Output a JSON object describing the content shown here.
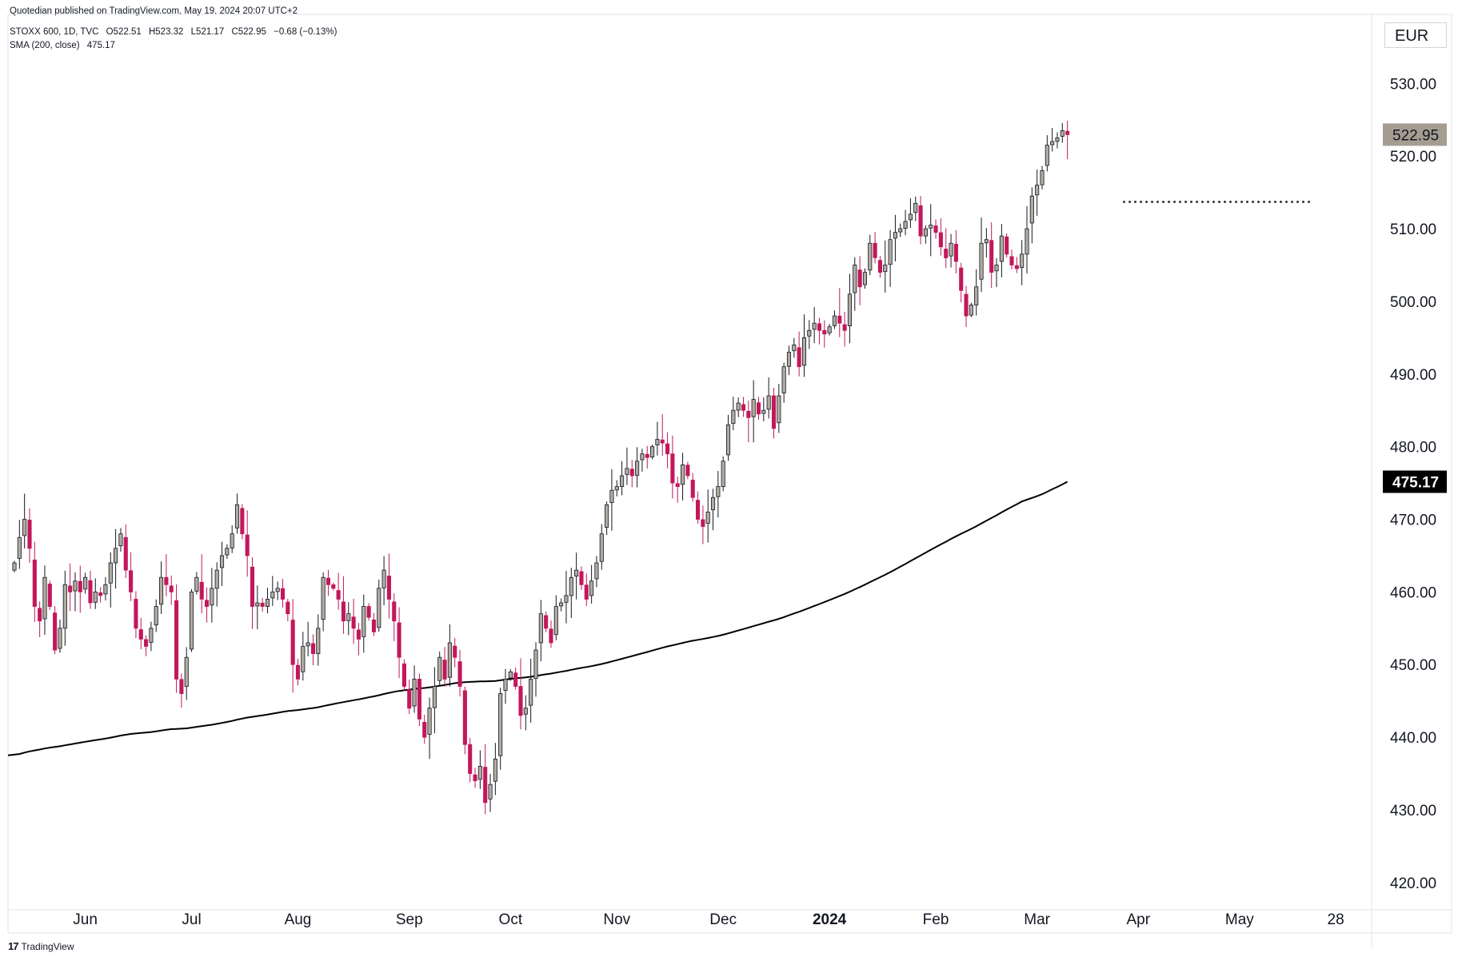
{
  "header": {
    "published": "Quotedian published on TradingView.com, May 19, 2024 20:07 UTC+2",
    "symbol": "STOXX 600, 1D, TVC",
    "open": "O522.51",
    "high": "H523.32",
    "low": "L521.17",
    "close": "C522.95",
    "change": "−0.68 (−0.13%)",
    "sma_label": "SMA (200, close)",
    "sma_value": "475.17",
    "currency": "EUR"
  },
  "brand": {
    "logo_text": "17",
    "name": "TradingView"
  },
  "colors": {
    "up_body": "#b2aca1",
    "down_body": "#c2185b",
    "outline": "#131722",
    "sma_line": "#000000",
    "price_label_bg": "#a59d92",
    "sma_label_bg": "#000000",
    "resistance": "#131722"
  },
  "chart_data": {
    "type": "candlestick",
    "title": "STOXX 600, 1D, TVC",
    "ylim": [
      418,
      534
    ],
    "y_ticks": [
      420,
      430,
      440,
      450,
      460,
      470,
      480,
      490,
      500,
      510,
      520,
      530
    ],
    "y_tick_labels": [
      "420.00",
      "430.00",
      "440.00",
      "450.00",
      "460.00",
      "470.00",
      "480.00",
      "490.00",
      "500.00",
      "510.00",
      "520.00",
      "530.00"
    ],
    "x_labels": [
      {
        "label": "Jun",
        "index": 14,
        "bold": false
      },
      {
        "label": "Jul",
        "index": 35,
        "bold": false
      },
      {
        "label": "Aug",
        "index": 56,
        "bold": false
      },
      {
        "label": "Sep",
        "index": 78,
        "bold": false
      },
      {
        "label": "Oct",
        "index": 98,
        "bold": false
      },
      {
        "label": "Nov",
        "index": 119,
        "bold": false
      },
      {
        "label": "Dec",
        "index": 140,
        "bold": false
      },
      {
        "label": "2024",
        "index": 161,
        "bold": true
      },
      {
        "label": "Feb",
        "index": 182,
        "bold": false
      },
      {
        "label": "Mar",
        "index": 202,
        "bold": false
      },
      {
        "label": "Apr",
        "index": 222,
        "bold": false
      },
      {
        "label": "May",
        "index": 242,
        "bold": false
      },
      {
        "label": "28",
        "index": 261,
        "bold": false
      }
    ],
    "last_price": {
      "value": 522.95,
      "label": "522.95"
    },
    "sma_last": {
      "value": 475.17,
      "label": "475.17"
    },
    "resistance": {
      "value": 513.7,
      "from_index": 219,
      "to_index": 256
    },
    "closes": [
      464,
      467.5,
      470,
      466,
      458,
      456,
      462,
      458,
      452,
      455,
      461,
      460,
      461.5,
      460,
      462,
      458.5,
      460,
      459.5,
      461,
      464,
      466,
      468,
      463,
      460,
      455,
      453.5,
      452.5,
      455,
      458,
      462,
      461,
      460,
      448,
      446,
      451,
      460,
      462,
      459,
      458,
      460.5,
      463,
      465,
      466,
      468,
      472,
      468,
      465,
      458,
      458.5,
      458,
      459,
      460,
      460.5,
      459,
      457,
      450,
      448,
      452.5,
      453,
      451.5,
      455,
      462,
      461,
      460.5,
      459,
      456,
      457,
      455,
      453.5,
      458,
      456.5,
      454.5,
      460.5,
      463,
      459,
      456,
      451,
      447,
      444,
      448,
      442.5,
      440,
      444,
      447,
      451,
      448,
      453,
      451,
      447,
      439,
      435,
      434,
      436,
      431,
      433.5,
      437,
      446,
      448,
      449,
      447,
      443,
      444,
      448,
      452,
      457,
      455,
      453,
      458,
      458.5,
      459.5,
      462,
      463,
      461,
      459,
      461.5,
      464,
      468,
      472,
      474,
      474.5,
      476,
      477,
      476,
      478,
      479,
      478.5,
      480,
      481,
      480.5,
      479,
      475,
      474.5,
      477.5,
      476,
      473,
      470,
      469,
      471,
      473,
      474.5,
      478,
      483,
      485,
      486,
      485,
      484,
      486.5,
      484.5,
      485,
      487,
      482.5,
      487,
      491,
      493,
      494,
      491,
      495,
      496,
      497,
      496,
      495.5,
      496.5,
      498,
      497,
      496,
      501,
      505,
      502,
      504,
      508,
      506,
      504,
      505,
      508.5,
      509.5,
      510,
      511,
      512,
      513.5,
      509,
      510,
      510.5,
      509.5,
      507.5,
      506,
      508,
      505.5,
      501.5,
      498,
      499.5,
      502,
      508,
      508.5,
      504,
      505,
      509,
      506.5,
      505,
      504.5,
      506.5,
      510,
      514.5,
      516,
      518,
      521.5,
      522,
      522.5,
      523.5,
      522.95
    ]
  }
}
